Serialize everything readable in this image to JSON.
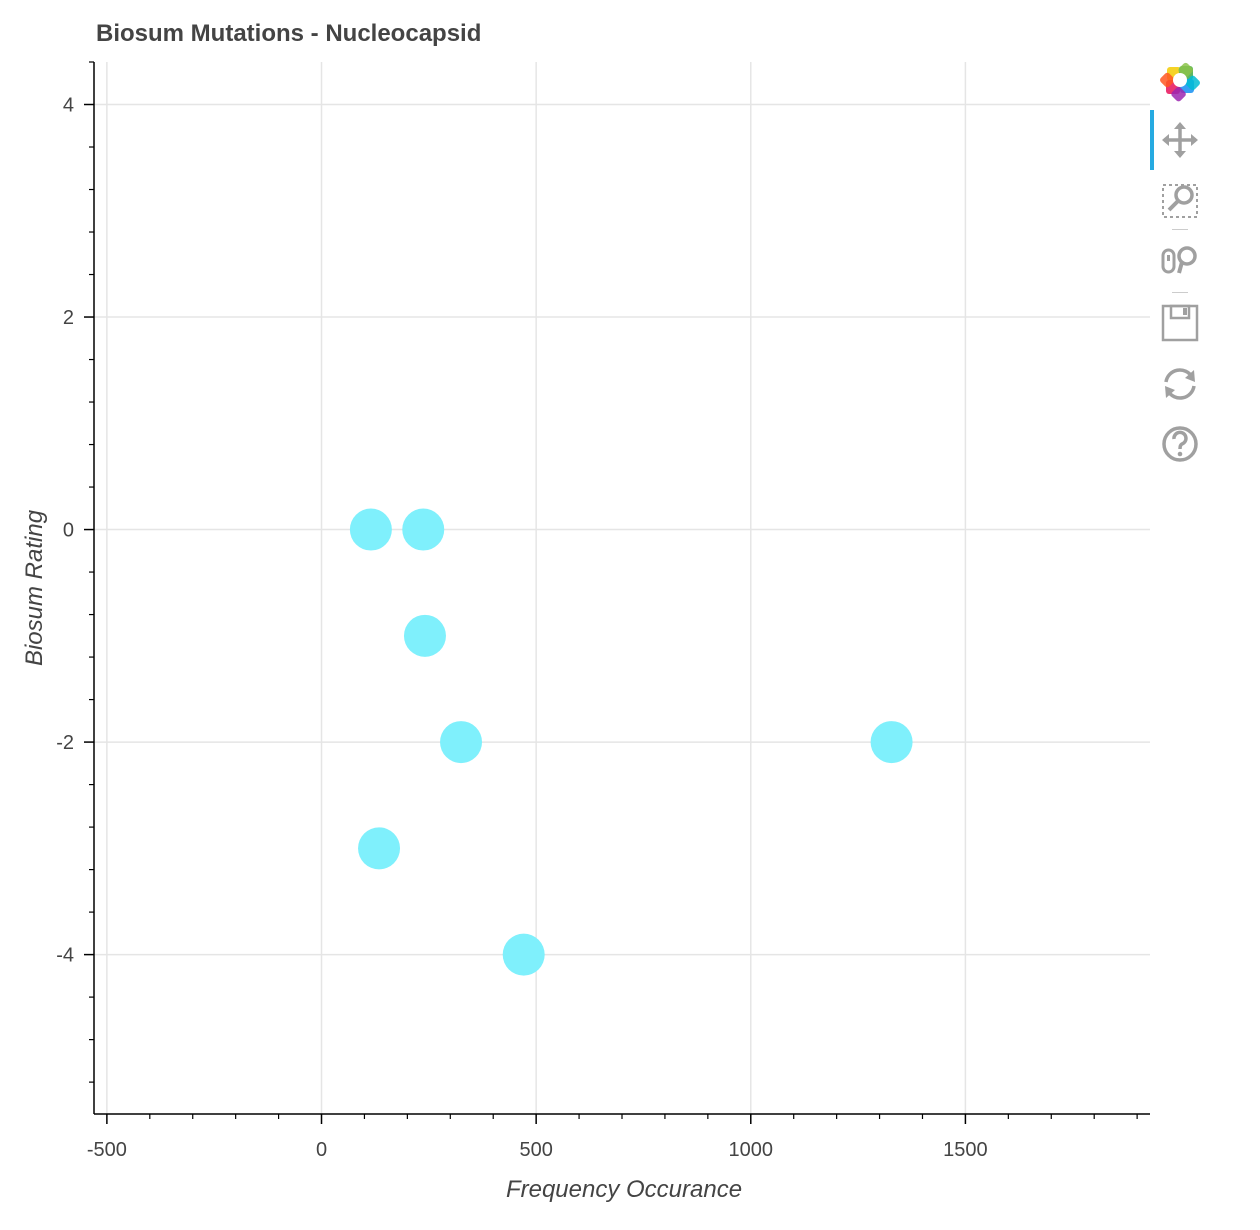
{
  "chart_data": {
    "type": "scatter",
    "title": "Biosum Mutations - Nucleocapsid",
    "xlabel": "Frequency Occurance",
    "ylabel": "Biosum Rating",
    "xlim": [
      -530,
      1930
    ],
    "ylim": [
      -5.5,
      4.4
    ],
    "x_ticks": [
      -500,
      0,
      500,
      1000,
      1500
    ],
    "x_tick_labels": [
      "-500",
      "0",
      "500",
      "1000",
      "1500"
    ],
    "y_ticks": [
      4,
      2,
      0,
      -2,
      -4
    ],
    "y_tick_labels": [
      "4",
      "2",
      "0",
      "-2",
      "-4"
    ],
    "grid": true,
    "marker_color": "#7ff0fc",
    "points": [
      {
        "x": 115,
        "y": 0
      },
      {
        "x": 237,
        "y": 0
      },
      {
        "x": 241,
        "y": -1
      },
      {
        "x": 325,
        "y": -2
      },
      {
        "x": 1328,
        "y": -2
      },
      {
        "x": 134,
        "y": -3
      },
      {
        "x": 471,
        "y": -4
      }
    ]
  },
  "toolbar": {
    "tools": [
      {
        "name": "bokeh-logo-icon"
      },
      {
        "name": "pan-icon"
      },
      {
        "name": "box-zoom-icon"
      },
      {
        "name": "wheel-zoom-icon"
      },
      {
        "name": "save-icon"
      },
      {
        "name": "reset-icon"
      },
      {
        "name": "help-icon"
      }
    ],
    "active_color": "#26aae1"
  }
}
